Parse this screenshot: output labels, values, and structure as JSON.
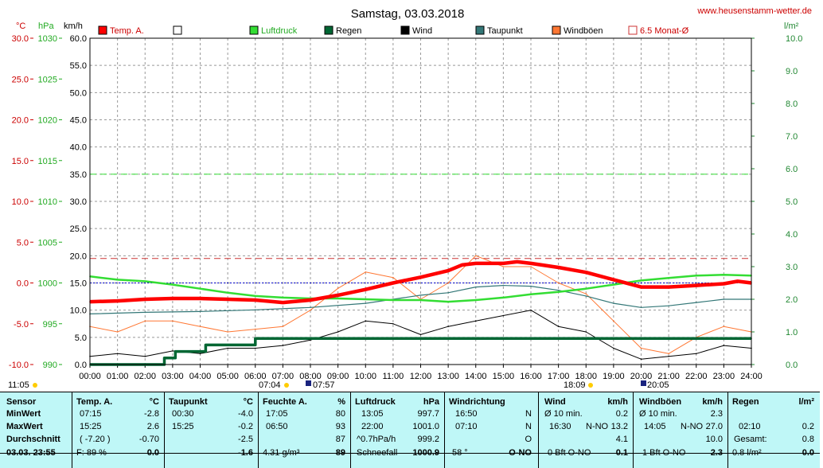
{
  "header": {
    "title": "Samstag, 03.03.2018",
    "website": "www.heusenstamm-wetter.de"
  },
  "colors": {
    "temp": "#ff0000",
    "pressure": "#33dd33",
    "rain": "#006633",
    "wind": "#000000",
    "dewpoint": "#337777",
    "gust": "#ff7733",
    "avg": "#cc3333",
    "rightaxis": "#228833"
  },
  "axes": {
    "temp_unit": "°C",
    "pressure_unit": "hPa",
    "wind_unit": "km/h",
    "rain_unit": "l/m²",
    "temp_ticks": [
      "30.0",
      "25.0",
      "20.0",
      "15.0",
      "10.0",
      "5.0",
      "0.0",
      "-5.0",
      "-10.0"
    ],
    "pressure_ticks": [
      "1030",
      "1025",
      "1020",
      "1015",
      "1010",
      "1005",
      "1000",
      "995",
      "990"
    ],
    "wind_ticks": [
      "60.0",
      "55.0",
      "50.0",
      "45.0",
      "40.0",
      "35.0",
      "30.0",
      "25.0",
      "20.0",
      "15.0",
      "10.0",
      "5.0",
      "0.0"
    ],
    "rain_ticks": [
      "10.0",
      "9.0",
      "8.0",
      "7.0",
      "6.0",
      "5.0",
      "4.0",
      "3.0",
      "2.0",
      "1.0",
      "0.0"
    ],
    "time_ticks": [
      "00:00",
      "01:00",
      "02:00",
      "03:00",
      "04:00",
      "05:00",
      "06:00",
      "07:00",
      "08:00",
      "09:00",
      "10:00",
      "11:00",
      "12:00",
      "13:00",
      "14:00",
      "15:00",
      "16:00",
      "17:00",
      "18:00",
      "19:00",
      "20:00",
      "21:00",
      "22:00",
      "23:00",
      "24:00"
    ],
    "below_labels": {
      "moonset": "11:05",
      "sunrise": "07:04",
      "dawn": "07:57",
      "sunset": "18:09",
      "dusk": "20:05"
    }
  },
  "legend": [
    {
      "label": "Temp. A.",
      "color": "#ff0000",
      "style": "filled"
    },
    {
      "label": "",
      "color": "#ffffff",
      "style": "outline"
    },
    {
      "label": "Luftdruck",
      "color": "#33dd33",
      "style": "filled"
    },
    {
      "label": "Regen",
      "color": "#006633",
      "style": "filled"
    },
    {
      "label": "Wind",
      "color": "#000000",
      "style": "filled"
    },
    {
      "label": "Taupunkt",
      "color": "#337777",
      "style": "filled"
    },
    {
      "label": "Windböen",
      "color": "#ff7733",
      "style": "filled"
    },
    {
      "label": "6.5 Monat-Ø",
      "color": "#cc3333",
      "style": "outline"
    }
  ],
  "chart_data": {
    "type": "line",
    "title": "Samstag, 03.03.2018",
    "x_unit": "hour",
    "xlim": [
      0,
      24
    ],
    "ylim_temp": [
      -10,
      30
    ],
    "ylim_pressure": [
      990,
      1030
    ],
    "ylim_wind": [
      0,
      60
    ],
    "ylim_rain": [
      0,
      10
    ],
    "grid": true,
    "reference_lines": {
      "avg_temp": 3.0,
      "avg_pressure_wind": 35.0,
      "zero_temp": 0.0
    },
    "series": [
      {
        "name": "Temp. A.",
        "axis": "temp",
        "x": [
          0,
          1,
          2,
          3,
          4,
          5,
          6,
          7,
          8,
          9,
          10,
          11,
          12,
          13,
          13.5,
          14,
          15,
          15.5,
          16,
          17,
          18,
          19,
          20,
          21,
          22,
          23,
          23.5,
          24
        ],
        "y": [
          -2.3,
          -2.2,
          -2.0,
          -1.9,
          -1.9,
          -2.0,
          -2.1,
          -2.4,
          -2.1,
          -1.5,
          -0.8,
          0.0,
          0.7,
          1.5,
          2.2,
          2.4,
          2.4,
          2.6,
          2.4,
          1.9,
          1.3,
          0.4,
          -0.5,
          -0.5,
          -0.3,
          -0.1,
          0.2,
          0.0
        ]
      },
      {
        "name": "Luftdruck",
        "axis": "pressure",
        "x": [
          0,
          1,
          2,
          3,
          4,
          5,
          6,
          7,
          8,
          9,
          10,
          11,
          12,
          13,
          14,
          15,
          16,
          17,
          18,
          19,
          20,
          21,
          22,
          23,
          24
        ],
        "y": [
          1000.8,
          1000.4,
          1000.2,
          999.8,
          999.3,
          998.8,
          998.4,
          998.2,
          998.1,
          998.1,
          998.0,
          997.9,
          997.9,
          997.7,
          997.9,
          998.2,
          998.6,
          998.9,
          999.3,
          999.8,
          1000.3,
          1000.6,
          1000.9,
          1001.0,
          1000.9
        ]
      },
      {
        "name": "Taupunkt",
        "axis": "temp",
        "x": [
          0,
          2,
          4,
          6,
          8,
          10,
          12,
          13,
          14,
          15,
          16,
          17,
          18,
          19,
          20,
          21,
          22,
          23,
          24
        ],
        "y": [
          -3.8,
          -3.6,
          -3.5,
          -3.3,
          -3.0,
          -2.5,
          -1.5,
          -1.2,
          -0.5,
          -0.3,
          -0.4,
          -0.9,
          -1.6,
          -2.5,
          -3.0,
          -2.8,
          -2.4,
          -2.0,
          -2.0
        ]
      },
      {
        "name": "Regen",
        "axis": "rain",
        "x": [
          0,
          2,
          2.7,
          3.1,
          4.2,
          6.0,
          24
        ],
        "y": [
          0.0,
          0.0,
          0.2,
          0.4,
          0.6,
          0.8,
          0.8
        ]
      },
      {
        "name": "Wind",
        "axis": "wind",
        "x": [
          0,
          1,
          2,
          3,
          4,
          5,
          6,
          7,
          8,
          9,
          10,
          11,
          12,
          13,
          14,
          15,
          16,
          17,
          18,
          19,
          20,
          21,
          22,
          23,
          24
        ],
        "y": [
          1.5,
          2.0,
          1.5,
          2.5,
          2.0,
          3.0,
          3.0,
          3.5,
          4.5,
          6.0,
          8.0,
          7.5,
          5.5,
          7.0,
          8.0,
          9.0,
          10.0,
          7.0,
          6.0,
          3.0,
          1.0,
          1.5,
          2.0,
          3.5,
          3.0
        ]
      },
      {
        "name": "Windböen",
        "axis": "wind",
        "x": [
          0,
          1,
          2,
          3,
          4,
          5,
          6,
          7,
          8,
          9,
          10,
          11,
          12,
          13,
          14,
          15,
          16,
          17,
          18,
          19,
          20,
          21,
          22,
          23,
          24
        ],
        "y": [
          7.0,
          6.0,
          8.0,
          8.0,
          7.0,
          6.0,
          6.5,
          7.0,
          10.0,
          14.0,
          17.0,
          16.0,
          12.0,
          15.0,
          20.0,
          18.0,
          18.0,
          15.0,
          13.0,
          8.0,
          3.0,
          2.0,
          5.0,
          7.0,
          6.0
        ]
      }
    ]
  },
  "stats": {
    "headers": {
      "sensor": "Sensor",
      "temp": "Temp. A.",
      "temp_unit": "°C",
      "dew": "Taupunkt",
      "dew_unit": "°C",
      "hum": "Feuchte A.",
      "hum_unit": "%",
      "press": "Luftdruck",
      "press_unit": "hPa",
      "dir": "Windrichtung",
      "wind": "Wind",
      "wind_unit": "km/h",
      "gust": "Windböen",
      "gust_unit": "km/h",
      "rain": "Regen",
      "rain_unit": "l/m²"
    },
    "rows": [
      "MinWert",
      "MaxWert",
      "Durchschnitt"
    ],
    "date": "03.03.  23:55",
    "temp": {
      "min_t": "07:15",
      "min_v": "-2.8",
      "max_t": "15:25",
      "max_v": "2.6",
      "avg_t": "( -7.20 )",
      "avg_v": "-0.70",
      "foot_l": "F:  89 %",
      "foot_r": "0.0"
    },
    "dew": {
      "min_t": "00:30",
      "min_v": "-4.0",
      "max_t": "15:25",
      "max_v": "-0.2",
      "avg_v": "-2.5",
      "foot_r": "-1.6"
    },
    "hum": {
      "min_t": "17:05",
      "min_v": "80",
      "max_t": "06:50",
      "max_v": "93",
      "avg_v": "87",
      "foot_l": "4.31 g/m³",
      "foot_r": "89"
    },
    "press": {
      "min_t": "13:05",
      "min_v": "997.7",
      "max_t": "22:00",
      "max_v": "1001.0",
      "avg_t": "^0.7hPa/h",
      "avg_v": "999.2",
      "foot_l": "Schneefall",
      "foot_r": "1000.9"
    },
    "dir": {
      "min_t": "16:50",
      "min_v": "N",
      "max_t": "07:10",
      "max_v": "N",
      "avg_v": "O",
      "foot_l": "58 °",
      "foot_r": "O-NO"
    },
    "wind": {
      "min_t": "Ø 10 min.",
      "min_v": "0.2",
      "max_t": "16:30",
      "max_d": "N-NO",
      "max_v": "13.2",
      "avg_v": "4.1",
      "foot_l": "0 Bft O-NO",
      "foot_r": "0.1"
    },
    "gust": {
      "min_t": "Ø 10 min.",
      "min_v": "2.3",
      "max_t": "14:05",
      "max_d": "N-NO",
      "max_v": "27.0",
      "avg_v": "10.0",
      "foot_l": "1 Bft O-NO",
      "foot_r": "2.3"
    },
    "rain": {
      "max_t": "02:10",
      "max_v": "0.2",
      "avg_t": "Gesamt:",
      "avg_v": "0.8",
      "foot_l": "0.8 l/m²",
      "foot_r": "0.0"
    }
  }
}
